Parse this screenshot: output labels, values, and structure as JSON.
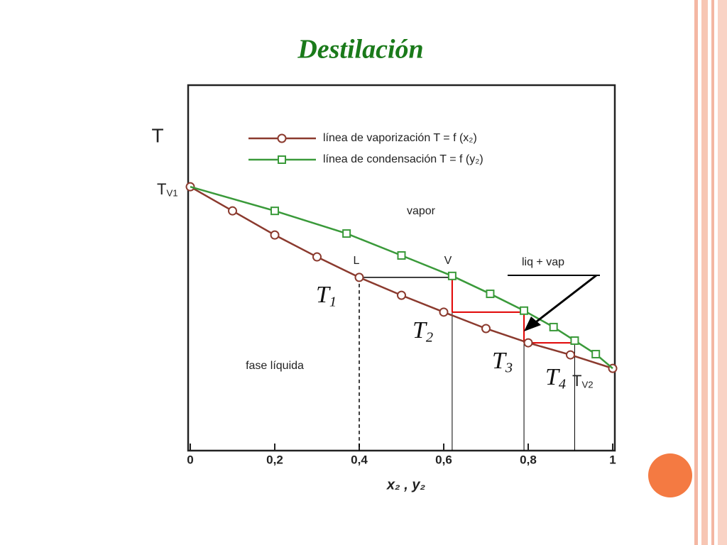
{
  "title": "Destilación",
  "chart_data": {
    "type": "line",
    "ylabel": {
      "text": "T"
    },
    "xlabel": "x₂  ,  y₂",
    "xlim": [
      0,
      1
    ],
    "ylim": [
      0,
      100
    ],
    "xticks": [
      0,
      {
        "value": 0.2,
        "label": "0,2"
      },
      {
        "value": 0.4,
        "label": "0,4"
      },
      {
        "value": 0.6,
        "label": "0,6"
      },
      {
        "value": 0.8,
        "label": "0,8"
      },
      1
    ],
    "series": [
      {
        "name": "línea de vaporización T = f (x₂)",
        "color": "#8b3a2e",
        "marker": "circle",
        "x": [
          0,
          0.1,
          0.2,
          0.3,
          0.4,
          0.5,
          0.6,
          0.7,
          0.8,
          0.9,
          1
        ],
        "values": [
          72.2,
          65.6,
          59.0,
          53.0,
          47.4,
          42.5,
          37.9,
          33.4,
          29.5,
          26.2,
          22.5
        ]
      },
      {
        "name": "línea de condensación T = f (y₂)",
        "color": "#3a9a3a",
        "marker": "square",
        "x": [
          0,
          0.2,
          0.37,
          0.5,
          0.62,
          0.71,
          0.79,
          0.86,
          0.91,
          0.96,
          1
        ],
        "values": [
          72.2,
          65.6,
          59.4,
          53.4,
          47.8,
          42.9,
          38.3,
          33.8,
          30.1,
          26.4,
          22.5
        ]
      }
    ],
    "stages": {
      "x": [
        0.4,
        0.62,
        0.79,
        0.91
      ],
      "values": [
        47.4,
        37.9,
        29.5,
        30.1
      ]
    },
    "annotations": {
      "tv1": {
        "text": "T",
        "sub": "V1"
      },
      "tv2": {
        "text": "T",
        "sub": "V2"
      },
      "t1": {
        "text": "T",
        "sub": "1"
      },
      "t2": {
        "text": "T",
        "sub": "2"
      },
      "t3": {
        "text": "T",
        "sub": "3"
      },
      "t4": {
        "text": "T",
        "sub": "4"
      },
      "vapor": "vapor",
      "liquid": "fase líquida",
      "L": "L",
      "V": "V",
      "mix": "liq + vap"
    }
  }
}
